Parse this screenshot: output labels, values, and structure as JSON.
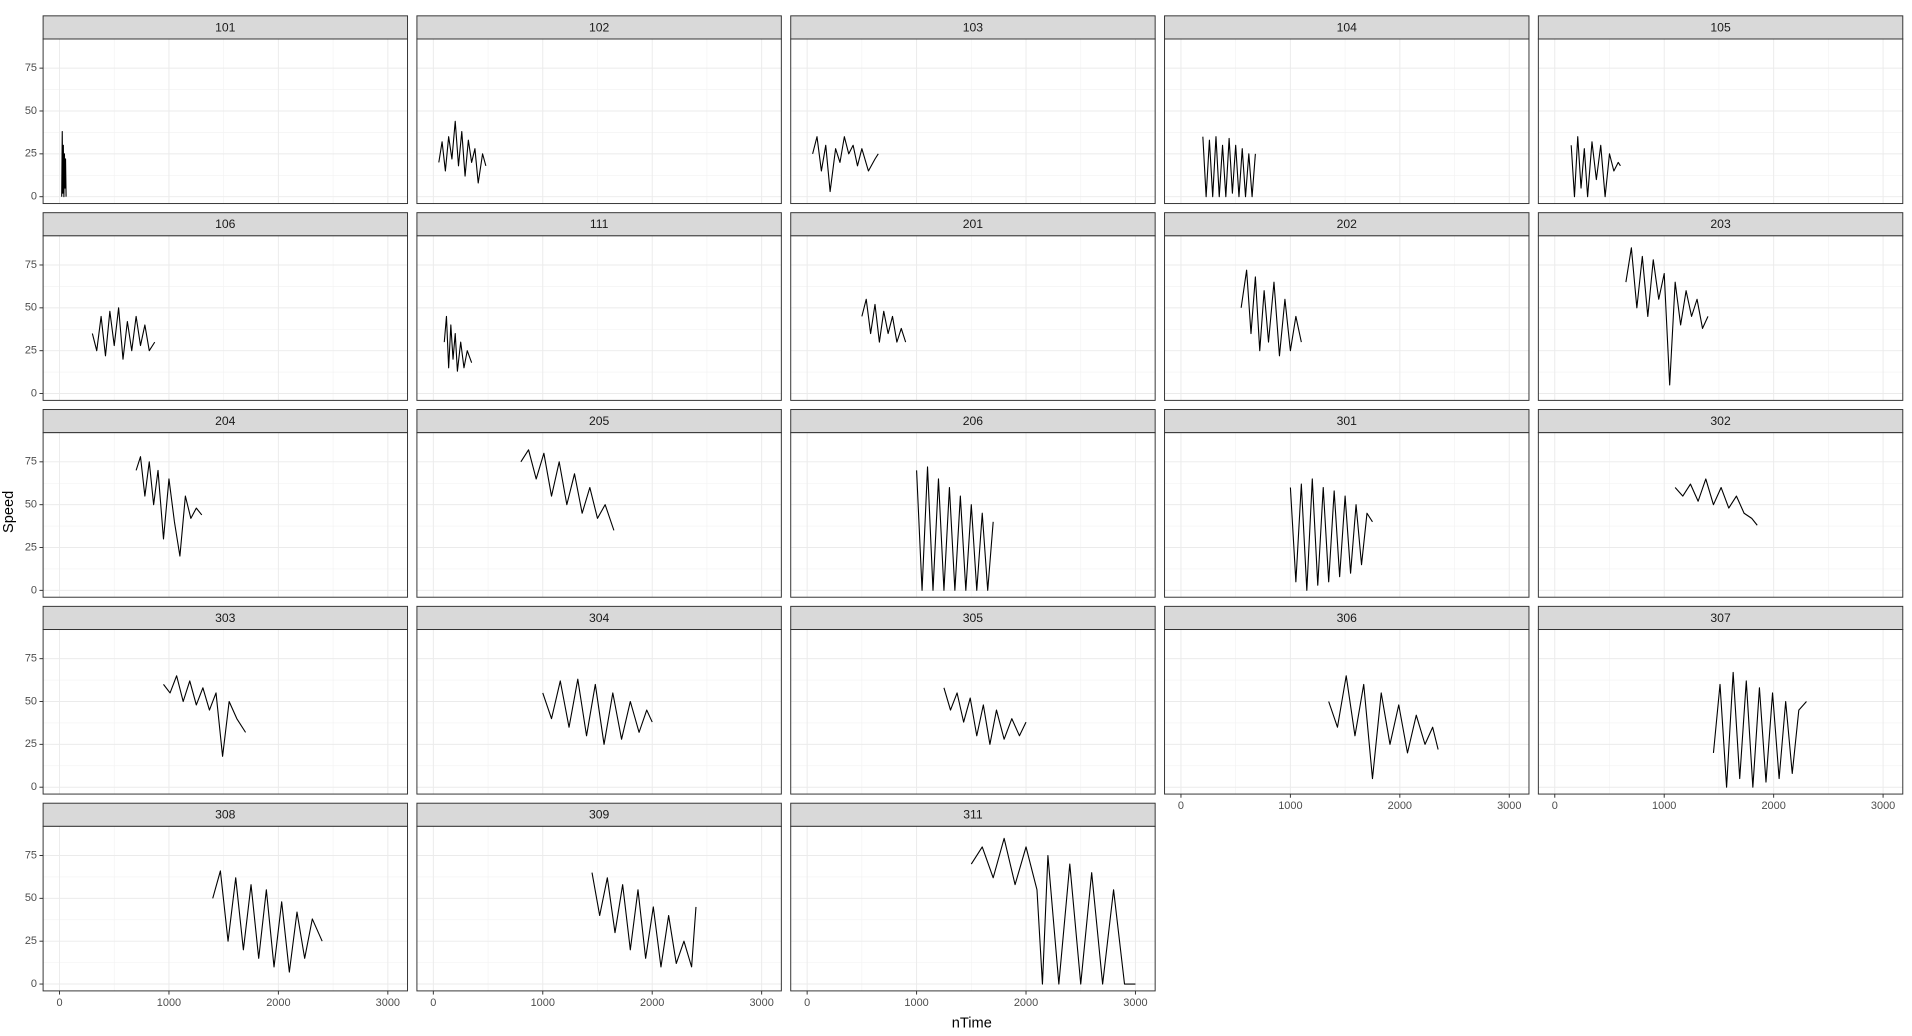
{
  "chart_data": {
    "type": "line",
    "x_label": "nTime",
    "y_label": "Speed",
    "ncol": 5,
    "xlim": [
      -150,
      3180
    ],
    "ylim": [
      -4,
      92
    ],
    "xticks": [
      0,
      1000,
      2000,
      3000
    ],
    "yticks": [
      0,
      25,
      50,
      75
    ],
    "grid": true,
    "series": [
      {
        "name": "101",
        "color": "#000000",
        "x": [
          20,
          25,
          30,
          35,
          40,
          45,
          50,
          55,
          60
        ],
        "values": [
          0,
          38,
          2,
          30,
          0,
          25,
          5,
          22,
          0
        ]
      },
      {
        "name": "102",
        "color": "#000000",
        "x": [
          50,
          80,
          110,
          140,
          170,
          200,
          230,
          260,
          290,
          320,
          350,
          380,
          410,
          450,
          480
        ],
        "values": [
          20,
          32,
          15,
          35,
          22,
          44,
          18,
          38,
          12,
          33,
          20,
          28,
          8,
          25,
          18
        ]
      },
      {
        "name": "103",
        "color": "#000000",
        "x": [
          50,
          90,
          130,
          170,
          210,
          260,
          300,
          340,
          380,
          420,
          460,
          500,
          560,
          620,
          650
        ],
        "values": [
          25,
          35,
          15,
          30,
          3,
          28,
          20,
          35,
          25,
          30,
          18,
          28,
          15,
          22,
          25
        ]
      },
      {
        "name": "104",
        "color": "#000000",
        "x": [
          200,
          230,
          260,
          290,
          320,
          350,
          380,
          410,
          440,
          470,
          500,
          530,
          560,
          590,
          620,
          650,
          680
        ],
        "values": [
          35,
          0,
          33,
          0,
          35,
          0,
          30,
          0,
          34,
          2,
          30,
          0,
          28,
          0,
          25,
          0,
          25
        ]
      },
      {
        "name": "105",
        "color": "#000000",
        "x": [
          150,
          180,
          210,
          240,
          270,
          300,
          340,
          380,
          420,
          460,
          500,
          540,
          580,
          600
        ],
        "values": [
          30,
          0,
          35,
          5,
          28,
          0,
          32,
          10,
          30,
          0,
          25,
          15,
          20,
          18
        ]
      },
      {
        "name": "106",
        "color": "#000000",
        "x": [
          300,
          340,
          380,
          420,
          460,
          500,
          540,
          580,
          620,
          660,
          700,
          740,
          780,
          820,
          870
        ],
        "values": [
          35,
          25,
          45,
          22,
          48,
          28,
          50,
          20,
          42,
          25,
          45,
          28,
          40,
          25,
          30
        ]
      },
      {
        "name": "111",
        "color": "#000000",
        "x": [
          100,
          120,
          140,
          160,
          180,
          200,
          220,
          250,
          280,
          310,
          350
        ],
        "values": [
          30,
          45,
          15,
          40,
          20,
          35,
          13,
          30,
          15,
          25,
          18
        ]
      },
      {
        "name": "201",
        "color": "#000000",
        "x": [
          500,
          540,
          580,
          620,
          660,
          700,
          740,
          780,
          820,
          860,
          900
        ],
        "values": [
          45,
          55,
          35,
          52,
          30,
          48,
          35,
          45,
          30,
          38,
          30
        ]
      },
      {
        "name": "202",
        "color": "#000000",
        "x": [
          550,
          600,
          640,
          680,
          720,
          760,
          800,
          850,
          900,
          950,
          1000,
          1050,
          1100
        ],
        "values": [
          50,
          72,
          35,
          68,
          25,
          60,
          30,
          65,
          22,
          55,
          25,
          45,
          30
        ]
      },
      {
        "name": "203",
        "color": "#000000",
        "x": [
          650,
          700,
          750,
          800,
          850,
          900,
          950,
          1000,
          1050,
          1100,
          1150,
          1200,
          1250,
          1300,
          1350,
          1400
        ],
        "values": [
          65,
          85,
          50,
          80,
          45,
          78,
          55,
          70,
          5,
          65,
          40,
          60,
          45,
          55,
          38,
          45
        ]
      },
      {
        "name": "204",
        "color": "#000000",
        "x": [
          700,
          740,
          780,
          820,
          860,
          900,
          950,
          1000,
          1050,
          1100,
          1150,
          1200,
          1250,
          1300
        ],
        "values": [
          70,
          78,
          55,
          75,
          50,
          70,
          30,
          65,
          40,
          20,
          55,
          42,
          48,
          44
        ]
      },
      {
        "name": "205",
        "color": "#000000",
        "x": [
          800,
          870,
          940,
          1010,
          1080,
          1150,
          1220,
          1290,
          1360,
          1430,
          1500,
          1570,
          1650
        ],
        "values": [
          75,
          82,
          65,
          80,
          55,
          75,
          50,
          68,
          45,
          60,
          42,
          50,
          35
        ]
      },
      {
        "name": "206",
        "color": "#000000",
        "x": [
          1000,
          1050,
          1100,
          1150,
          1200,
          1250,
          1300,
          1350,
          1400,
          1450,
          1500,
          1550,
          1600,
          1650,
          1700
        ],
        "values": [
          70,
          0,
          72,
          0,
          65,
          0,
          60,
          0,
          55,
          0,
          50,
          0,
          45,
          0,
          40
        ]
      },
      {
        "name": "301",
        "color": "#000000",
        "x": [
          1000,
          1050,
          1100,
          1150,
          1200,
          1250,
          1300,
          1350,
          1400,
          1450,
          1500,
          1550,
          1600,
          1650,
          1700,
          1750
        ],
        "values": [
          60,
          5,
          62,
          0,
          65,
          3,
          60,
          5,
          58,
          8,
          55,
          10,
          50,
          15,
          45,
          40
        ]
      },
      {
        "name": "302",
        "color": "#000000",
        "x": [
          1100,
          1170,
          1240,
          1310,
          1380,
          1450,
          1520,
          1590,
          1660,
          1730,
          1800,
          1850
        ],
        "values": [
          60,
          55,
          62,
          52,
          65,
          50,
          60,
          48,
          55,
          45,
          42,
          38
        ]
      },
      {
        "name": "303",
        "color": "#000000",
        "x": [
          950,
          1010,
          1070,
          1130,
          1190,
          1250,
          1310,
          1370,
          1430,
          1490,
          1550,
          1620,
          1700
        ],
        "values": [
          60,
          55,
          65,
          50,
          62,
          48,
          58,
          45,
          55,
          18,
          50,
          40,
          32
        ]
      },
      {
        "name": "304",
        "color": "#000000",
        "x": [
          1000,
          1080,
          1160,
          1240,
          1320,
          1400,
          1480,
          1560,
          1640,
          1720,
          1800,
          1880,
          1950,
          2000
        ],
        "values": [
          55,
          40,
          62,
          35,
          63,
          30,
          60,
          25,
          55,
          28,
          50,
          32,
          45,
          38
        ]
      },
      {
        "name": "305",
        "color": "#000000",
        "x": [
          1250,
          1310,
          1370,
          1430,
          1490,
          1550,
          1610,
          1670,
          1730,
          1800,
          1870,
          1940,
          2000
        ],
        "values": [
          58,
          45,
          55,
          38,
          52,
          30,
          48,
          25,
          45,
          28,
          40,
          30,
          38
        ]
      },
      {
        "name": "306",
        "color": "#000000",
        "x": [
          1350,
          1430,
          1510,
          1590,
          1670,
          1750,
          1830,
          1910,
          1990,
          2070,
          2150,
          2230,
          2300,
          2350
        ],
        "values": [
          50,
          35,
          65,
          30,
          60,
          5,
          55,
          25,
          48,
          20,
          42,
          25,
          35,
          22
        ]
      },
      {
        "name": "307",
        "color": "#000000",
        "x": [
          1450,
          1510,
          1570,
          1630,
          1690,
          1750,
          1810,
          1870,
          1930,
          1990,
          2050,
          2110,
          2170,
          2230,
          2300
        ],
        "values": [
          20,
          60,
          0,
          67,
          5,
          62,
          0,
          58,
          3,
          55,
          5,
          50,
          8,
          45,
          50
        ]
      },
      {
        "name": "308",
        "color": "#000000",
        "x": [
          1400,
          1470,
          1540,
          1610,
          1680,
          1750,
          1820,
          1890,
          1960,
          2030,
          2100,
          2170,
          2240,
          2310,
          2400
        ],
        "values": [
          50,
          66,
          25,
          62,
          20,
          58,
          15,
          55,
          10,
          48,
          7,
          42,
          15,
          38,
          25
        ]
      },
      {
        "name": "309",
        "color": "#000000",
        "x": [
          1450,
          1520,
          1590,
          1660,
          1730,
          1800,
          1870,
          1940,
          2010,
          2080,
          2150,
          2220,
          2290,
          2360,
          2400
        ],
        "values": [
          65,
          40,
          62,
          30,
          58,
          20,
          55,
          15,
          45,
          10,
          40,
          12,
          25,
          10,
          45
        ]
      },
      {
        "name": "311",
        "color": "#000000",
        "x": [
          1500,
          1600,
          1700,
          1800,
          1900,
          2000,
          2100,
          2150,
          2200,
          2300,
          2400,
          2500,
          2600,
          2700,
          2800,
          2900,
          3000
        ],
        "values": [
          70,
          80,
          62,
          85,
          58,
          80,
          55,
          0,
          75,
          0,
          70,
          0,
          65,
          0,
          55,
          0,
          0
        ]
      }
    ]
  }
}
